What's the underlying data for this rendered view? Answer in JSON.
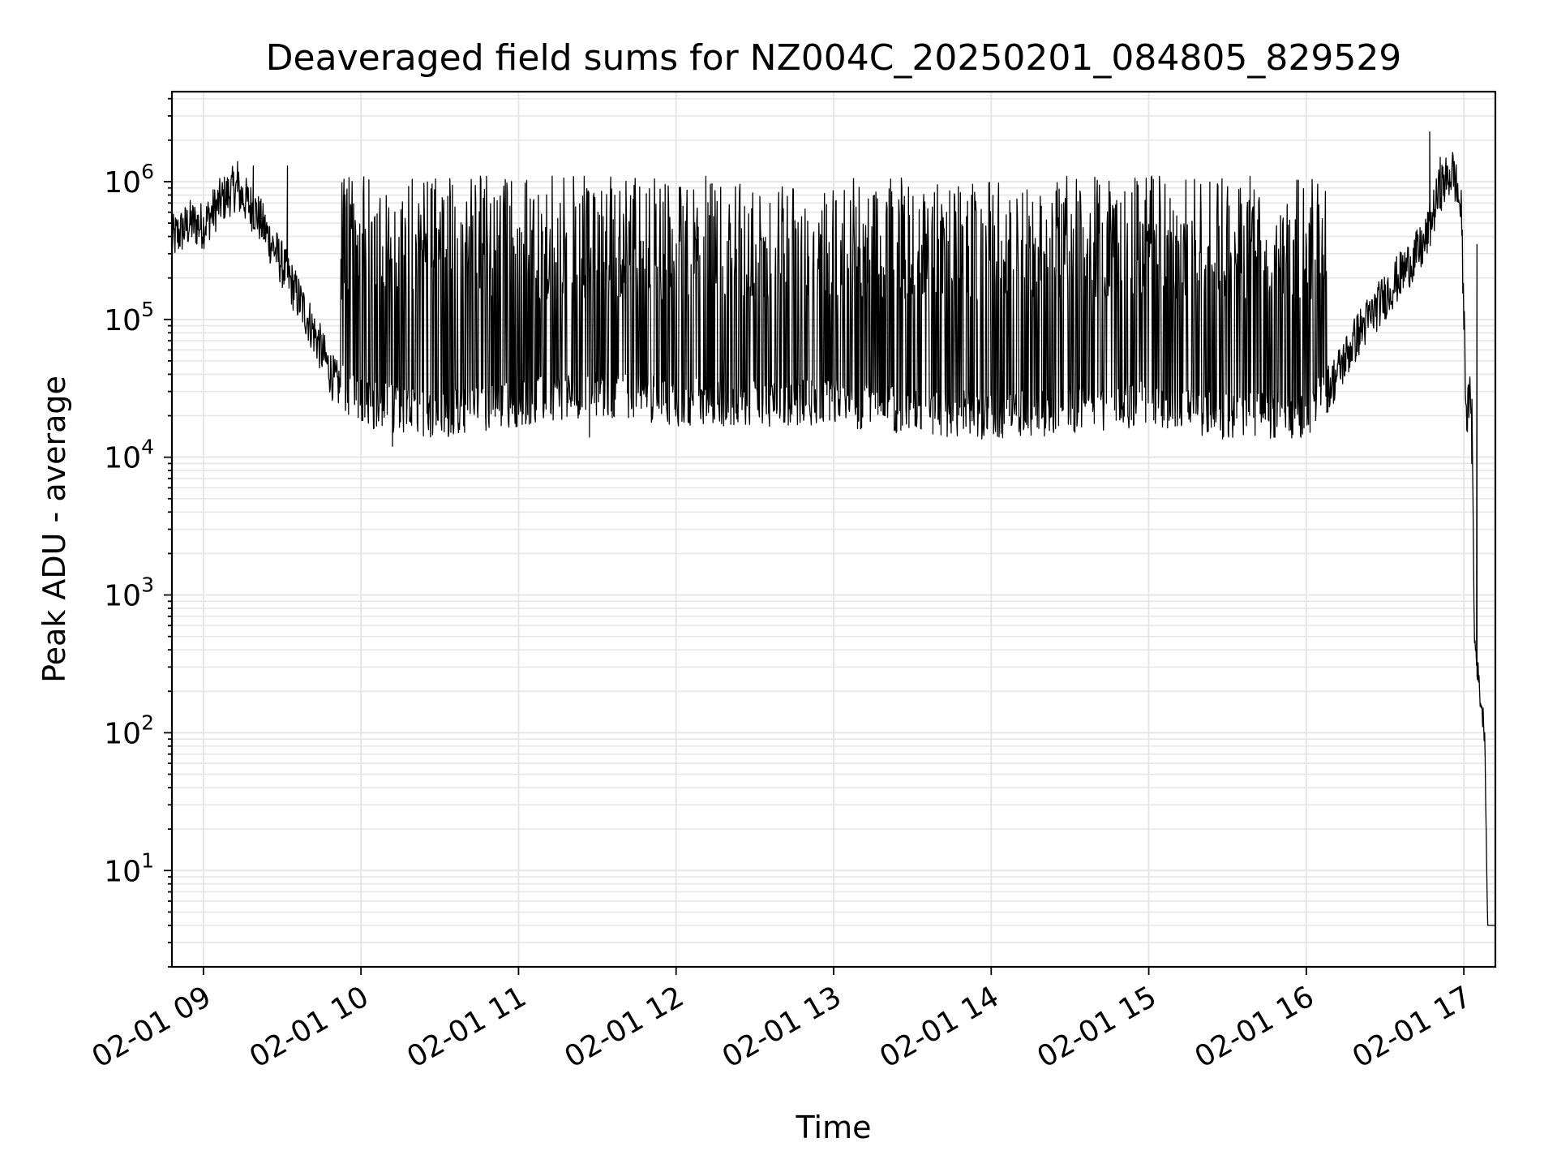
{
  "chart_data": {
    "type": "line",
    "title": "Deaveraged field sums for NZ004C_20250201_084805_829529",
    "xlabel": "Time",
    "ylabel": "Peak ADU - average",
    "y_scale": "log",
    "ylim": [
      2,
      4500000.0
    ],
    "xlim": [
      "02-01 08:48",
      "02-01 17:12"
    ],
    "grid": true,
    "line_color": "#000000",
    "grid_color": "#e6e6e6",
    "x_ticks": [
      {
        "value": "02-01 09:00",
        "label": "02-01 09"
      },
      {
        "value": "02-01 10:00",
        "label": "02-01 10"
      },
      {
        "value": "02-01 11:00",
        "label": "02-01 11"
      },
      {
        "value": "02-01 12:00",
        "label": "02-01 12"
      },
      {
        "value": "02-01 13:00",
        "label": "02-01 13"
      },
      {
        "value": "02-01 14:00",
        "label": "02-01 14"
      },
      {
        "value": "02-01 15:00",
        "label": "02-01 15"
      },
      {
        "value": "02-01 16:00",
        "label": "02-01 16"
      },
      {
        "value": "02-01 17:00",
        "label": "02-01 17"
      }
    ],
    "y_ticks": [
      {
        "value": 10,
        "base": "10",
        "exp": "1"
      },
      {
        "value": 100,
        "base": "10",
        "exp": "2"
      },
      {
        "value": 1000,
        "base": "10",
        "exp": "3"
      },
      {
        "value": 10000,
        "base": "10",
        "exp": "4"
      },
      {
        "value": 100000,
        "base": "10",
        "exp": "5"
      },
      {
        "value": 1000000,
        "base": "10",
        "exp": "6"
      }
    ],
    "series": [
      {
        "baseline": [
          [
            "02-01 08:48",
            380000
          ],
          [
            "02-01 08:55",
            500000
          ],
          [
            "02-01 09:00",
            480000
          ],
          [
            "02-01 09:06",
            700000
          ],
          [
            "02-01 09:12",
            900000
          ],
          [
            "02-01 09:20",
            600000
          ],
          [
            "02-01 09:30",
            250000
          ],
          [
            "02-01 09:40",
            100000
          ],
          [
            "02-01 09:50",
            35000
          ],
          [
            "02-01 10:00",
            25000
          ],
          [
            "02-01 10:15",
            22000
          ],
          [
            "02-01 10:30",
            20000
          ],
          [
            "02-01 11:00",
            25000
          ],
          [
            "02-01 11:30",
            30000
          ],
          [
            "02-01 12:00",
            25000
          ],
          [
            "02-01 12:30",
            25000
          ],
          [
            "02-01 13:00",
            25000
          ],
          [
            "02-01 13:30",
            22000
          ],
          [
            "02-01 14:00",
            20000
          ],
          [
            "02-01 14:30",
            22000
          ],
          [
            "02-01 15:00",
            25000
          ],
          [
            "02-01 15:30",
            20000
          ],
          [
            "02-01 16:00",
            20000
          ],
          [
            "02-01 16:10",
            35000
          ],
          [
            "02-01 16:20",
            80000
          ],
          [
            "02-01 16:35",
            200000
          ],
          [
            "02-01 16:45",
            350000
          ],
          [
            "02-01 16:51",
            900000
          ],
          [
            "02-01 16:56",
            1200000
          ],
          [
            "02-01 16:59",
            600000
          ],
          [
            "02-01 17:01",
            20000
          ],
          [
            "02-01 17:03",
            30000
          ],
          [
            "02-01 17:04",
            500
          ],
          [
            "02-01 17:06",
            200
          ],
          [
            "02-01 17:08",
            100
          ],
          [
            "02-01 17:09",
            4
          ],
          [
            "02-01 17:12",
            4
          ]
        ],
        "spike_windows": [
          {
            "start": "02-01 09:52",
            "end": "02-01 16:08",
            "peak": 1100000
          }
        ],
        "notable_points": [
          [
            "02-01 09:13",
            1400000
          ],
          [
            "02-01 09:19",
            1300000
          ],
          [
            "02-01 09:32",
            1300000
          ],
          [
            "02-01 10:12",
            12000
          ],
          [
            "02-01 11:27",
            14000
          ],
          [
            "02-01 16:47",
            2300000
          ],
          [
            "02-01 16:51",
            1500000
          ],
          [
            "02-01 17:03",
            9000
          ],
          [
            "02-01 17:05",
            350000
          ]
        ]
      }
    ]
  }
}
